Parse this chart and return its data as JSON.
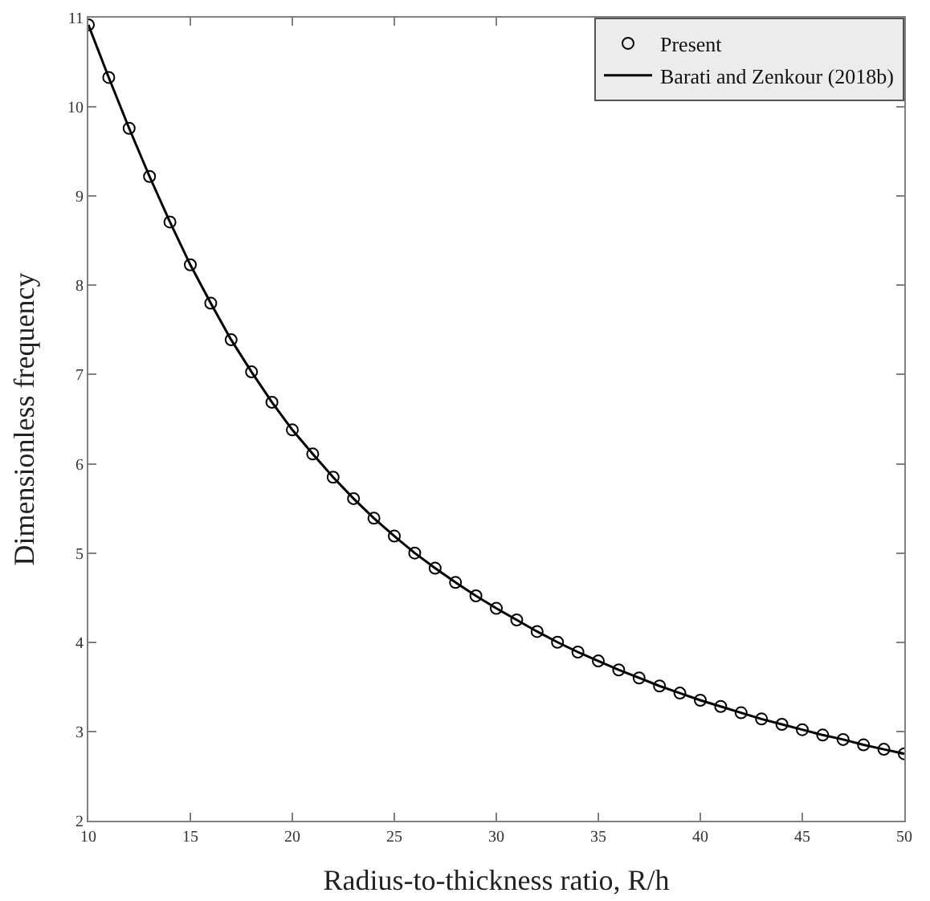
{
  "chart_data": {
    "type": "line",
    "xlabel": "Radius-to-thickness ratio, R/h",
    "ylabel": "Dimensionless frequency",
    "x": [
      10,
      11,
      12,
      13,
      14,
      15,
      16,
      17,
      18,
      19,
      20,
      21,
      22,
      23,
      24,
      25,
      26,
      27,
      28,
      29,
      30,
      31,
      32,
      33,
      34,
      35,
      36,
      37,
      38,
      39,
      40,
      41,
      42,
      43,
      44,
      45,
      46,
      47,
      48,
      49,
      50
    ],
    "series": [
      {
        "name": "Present",
        "type": "scatter",
        "marker": "circle",
        "color": "#000000",
        "values": [
          10.92,
          10.33,
          9.76,
          9.22,
          8.71,
          8.23,
          7.8,
          7.39,
          7.03,
          6.69,
          6.38,
          6.11,
          5.85,
          5.61,
          5.39,
          5.19,
          5.0,
          4.83,
          4.67,
          4.52,
          4.38,
          4.25,
          4.12,
          4.0,
          3.89,
          3.79,
          3.69,
          3.6,
          3.51,
          3.43,
          3.35,
          3.28,
          3.21,
          3.14,
          3.08,
          3.02,
          2.96,
          2.91,
          2.85,
          2.8,
          2.75
        ]
      },
      {
        "name": "Barati and Zenkour (2018b)",
        "line_style": "solid",
        "color": "#000000",
        "values": [
          10.92,
          10.33,
          9.76,
          9.22,
          8.71,
          8.23,
          7.8,
          7.39,
          7.03,
          6.69,
          6.38,
          6.11,
          5.85,
          5.61,
          5.39,
          5.19,
          5.0,
          4.83,
          4.67,
          4.52,
          4.38,
          4.25,
          4.12,
          4.0,
          3.89,
          3.79,
          3.69,
          3.6,
          3.51,
          3.43,
          3.35,
          3.28,
          3.21,
          3.14,
          3.08,
          3.02,
          2.96,
          2.91,
          2.85,
          2.8,
          2.75
        ]
      }
    ],
    "xlim": [
      10,
      50
    ],
    "xticks": [
      10,
      15,
      20,
      25,
      30,
      35,
      40,
      45,
      50
    ],
    "ylim": [
      2,
      11
    ],
    "yticks": [
      2,
      3,
      4,
      5,
      6,
      7,
      8,
      9,
      10,
      11
    ],
    "legend": "top right"
  }
}
